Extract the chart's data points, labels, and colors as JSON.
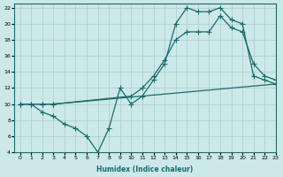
{
  "title": "",
  "xlabel": "Humidex (Indice chaleur)",
  "ylabel": "",
  "bg_color": "#cce8e8",
  "grid_color": "#aacccc",
  "line_color": "#1a6b6b",
  "xlim": [
    -0.5,
    23
  ],
  "ylim": [
    4,
    22.5
  ],
  "xticks": [
    0,
    1,
    2,
    3,
    4,
    5,
    6,
    7,
    8,
    9,
    10,
    11,
    12,
    13,
    14,
    15,
    16,
    17,
    18,
    19,
    20,
    21,
    22,
    23
  ],
  "yticks": [
    4,
    6,
    8,
    10,
    12,
    14,
    16,
    18,
    20,
    22
  ],
  "line_jagged_x": [
    0,
    1,
    2,
    3,
    4,
    5,
    6,
    7,
    8,
    9,
    10,
    11,
    12,
    13,
    14,
    15,
    16,
    17,
    18,
    19,
    20,
    21,
    22,
    23
  ],
  "line_jagged_y": [
    10,
    10,
    9,
    8.5,
    7.5,
    7,
    6,
    4,
    7,
    12,
    10,
    11,
    13,
    15,
    20,
    22,
    21.5,
    21.5,
    22,
    20.5,
    20,
    13.5,
    13,
    12.5
  ],
  "line_mid_x": [
    0,
    2,
    3,
    10,
    11,
    12,
    13,
    14,
    15,
    16,
    17,
    18,
    19,
    20,
    21,
    22,
    23
  ],
  "line_mid_y": [
    10,
    10,
    10,
    11,
    12,
    13.5,
    15.5,
    18,
    19,
    19,
    19,
    21,
    19.5,
    19,
    15,
    13.5,
    13
  ],
  "line_low_x": [
    0,
    1,
    2,
    3,
    23
  ],
  "line_low_y": [
    10,
    10,
    10,
    10,
    12.5
  ],
  "marker_size": 2.5,
  "line_width": 0.9
}
